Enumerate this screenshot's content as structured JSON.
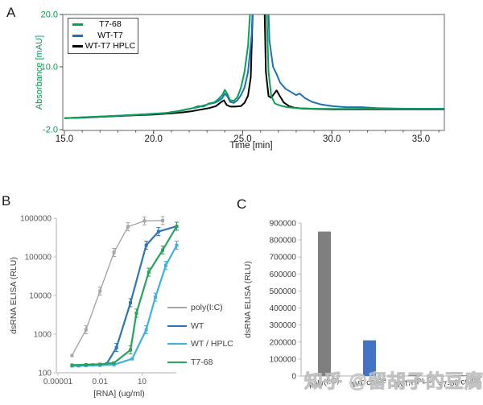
{
  "watermark": {
    "text": "知乎 @留胡子的豆腐",
    "color": "#c7c7c7"
  },
  "chart_data": [
    {
      "panel_label": "A",
      "type": "line",
      "description": "HPLC chromatogram",
      "xlabel": "Time [min]",
      "ylabel": "Absorbance [mAU]",
      "xlim": [
        15,
        36.3
      ],
      "ylim": [
        -2,
        20
      ],
      "x_ticks": {
        "labels": [
          "15.0",
          "20.0",
          "25.0",
          "30.0",
          "35.0"
        ],
        "values": [
          15,
          20,
          25,
          30,
          35
        ]
      },
      "y_ticks": {
        "labels": [
          "20.0",
          "10.0",
          "-2.0"
        ],
        "values": [
          20,
          10,
          -2
        ]
      },
      "axis_color": "#7f7f7f",
      "ylabel_color": "#00a050",
      "grid": false,
      "legend_position": "top-left-boxed",
      "series": [
        {
          "name": "WT-T7 HPLC",
          "color": "#000000",
          "points": [
            [
              15,
              0.2
            ],
            [
              16,
              0.3
            ],
            [
              17,
              0.45
            ],
            [
              18,
              0.6
            ],
            [
              19,
              0.75
            ],
            [
              20,
              0.9
            ],
            [
              21,
              1.1
            ],
            [
              21.6,
              1.3
            ],
            [
              22.1,
              1.5
            ],
            [
              22.6,
              1.8
            ],
            [
              23.1,
              2.1
            ],
            [
              23.5,
              2.5
            ],
            [
              23.8,
              3.3
            ],
            [
              23.95,
              3.6
            ],
            [
              24.1,
              2.7
            ],
            [
              24.3,
              2.4
            ],
            [
              24.6,
              2.4
            ],
            [
              24.9,
              2.5
            ],
            [
              25.1,
              3.1
            ],
            [
              25.3,
              4.5
            ],
            [
              25.45,
              8
            ],
            [
              25.6,
              25
            ],
            [
              26.2,
              25
            ],
            [
              26.3,
              9
            ],
            [
              26.45,
              4.4
            ],
            [
              26.6,
              4.1
            ],
            [
              26.9,
              5.5
            ],
            [
              27.05,
              4.6
            ],
            [
              27.3,
              3.2
            ],
            [
              27.6,
              2.5
            ],
            [
              27.9,
              2.2
            ],
            [
              28.3,
              2.05
            ],
            [
              29,
              1.95
            ],
            [
              30,
              1.9
            ],
            [
              32,
              1.9
            ],
            [
              34,
              1.9
            ],
            [
              36.3,
              1.9
            ]
          ]
        },
        {
          "name": "WT-T7",
          "color": "#1f70b8",
          "points": [
            [
              15,
              0.2
            ],
            [
              16,
              0.35
            ],
            [
              17,
              0.5
            ],
            [
              18,
              0.65
            ],
            [
              19,
              0.85
            ],
            [
              20,
              1.05
            ],
            [
              20.7,
              1.2
            ],
            [
              21.3,
              1.5
            ],
            [
              21.8,
              1.85
            ],
            [
              22.2,
              2.1
            ],
            [
              22.5,
              2.3
            ],
            [
              22.8,
              2.6
            ],
            [
              23.1,
              2.9
            ],
            [
              23.4,
              3.1
            ],
            [
              23.6,
              3.4
            ],
            [
              23.85,
              4.0
            ],
            [
              24.0,
              4.9
            ],
            [
              24.15,
              4.3
            ],
            [
              24.3,
              3.3
            ],
            [
              24.5,
              3.1
            ],
            [
              24.7,
              3.6
            ],
            [
              24.9,
              4.6
            ],
            [
              25.1,
              6
            ],
            [
              25.3,
              9
            ],
            [
              25.5,
              16
            ],
            [
              25.6,
              25
            ],
            [
              26.4,
              25
            ],
            [
              26.5,
              15
            ],
            [
              26.7,
              10
            ],
            [
              26.9,
              8.6
            ],
            [
              27.1,
              7
            ],
            [
              27.4,
              5.8
            ],
            [
              27.7,
              5.2
            ],
            [
              28.0,
              4.6
            ],
            [
              28.2,
              4.9
            ],
            [
              28.5,
              4.0
            ],
            [
              28.9,
              3.3
            ],
            [
              29.4,
              2.8
            ],
            [
              30,
              2.5
            ],
            [
              30.8,
              2.3
            ],
            [
              31.7,
              2.3
            ],
            [
              32.5,
              2.1
            ],
            [
              33.5,
              2.05
            ],
            [
              34.5,
              2.0
            ],
            [
              36.3,
              2.0
            ]
          ]
        },
        {
          "name": "T7-68",
          "color": "#0aa153",
          "points": [
            [
              15,
              0.2
            ],
            [
              16,
              0.35
            ],
            [
              17,
              0.5
            ],
            [
              18,
              0.65
            ],
            [
              19,
              0.8
            ],
            [
              20,
              1.0
            ],
            [
              20.7,
              1.15
            ],
            [
              21.3,
              1.45
            ],
            [
              21.8,
              1.8
            ],
            [
              22.2,
              2.1
            ],
            [
              22.5,
              2.5
            ],
            [
              22.8,
              2.4
            ],
            [
              23.1,
              3.0
            ],
            [
              23.4,
              3.2
            ],
            [
              23.6,
              3.7
            ],
            [
              23.85,
              4.6
            ],
            [
              24.0,
              5.6
            ],
            [
              24.15,
              4.7
            ],
            [
              24.3,
              3.6
            ],
            [
              24.5,
              3.5
            ],
            [
              24.7,
              4.2
            ],
            [
              24.9,
              6
            ],
            [
              25.1,
              9
            ],
            [
              25.3,
              14
            ],
            [
              25.5,
              25
            ],
            [
              26.3,
              25
            ],
            [
              26.45,
              9
            ],
            [
              26.6,
              4.5
            ],
            [
              26.8,
              3.0
            ],
            [
              27.1,
              2.6
            ],
            [
              27.5,
              2.3
            ],
            [
              28,
              2.1
            ],
            [
              29,
              2.0
            ],
            [
              30,
              1.95
            ],
            [
              31,
              1.95
            ],
            [
              32,
              2.0
            ],
            [
              33,
              1.95
            ],
            [
              34,
              1.95
            ],
            [
              36.3,
              1.95
            ]
          ]
        }
      ],
      "legend_order": [
        "T7-68",
        "WT-T7",
        "WT-T7 HPLC"
      ]
    },
    {
      "panel_label": "B",
      "type": "line",
      "description": "dsRNA ELISA dose-response, log-log",
      "xlabel": "[RNA] (ug/ml)",
      "ylabel": "dsRNA ELISA (RLU)",
      "xscale": "log",
      "yscale": "log",
      "xlim": [
        1e-05,
        3000
      ],
      "ylim": [
        100,
        1000000
      ],
      "x_ticks": {
        "labels": [
          "0.00001",
          "0.01",
          "10"
        ],
        "values": [
          1e-05,
          0.01,
          10
        ]
      },
      "y_ticks": {
        "labels": [
          "100",
          "1000",
          "10000",
          "100000",
          "1000000"
        ],
        "values": [
          100,
          1000,
          10000,
          100000,
          1000000
        ]
      },
      "axis_color": "#bfbfbf",
      "grid": false,
      "has_error_bars": true,
      "legend_position": "right",
      "series": [
        {
          "name": "poly(I:C)",
          "color": "#a6a6a6",
          "width": 1.4,
          "x": [
            0.0001,
            0.001,
            0.01,
            0.1,
            1,
            15,
            300
          ],
          "y": [
            280,
            1300,
            13000,
            130000,
            600000,
            850000,
            870000
          ]
        },
        {
          "name": "WT",
          "color": "#2e75b6",
          "width": 2.2,
          "x": [
            0.0003,
            0.003,
            0.03,
            0.15,
            1.5,
            20,
            150,
            3000
          ],
          "y": [
            152,
            160,
            170,
            450,
            6500,
            200000,
            450000,
            620000
          ]
        },
        {
          "name": "WT / HPLC",
          "color": "#41b0e1",
          "width": 2.2,
          "x": [
            0.0001,
            0.001,
            0.01,
            0.1,
            2,
            20,
            90,
            500,
            3000
          ],
          "y": [
            150,
            153,
            156,
            162,
            230,
            1300,
            9000,
            60000,
            200000
          ]
        },
        {
          "name": "T7-68",
          "color": "#27a35e",
          "width": 2.2,
          "x": [
            0.0001,
            0.001,
            0.01,
            0.1,
            1.5,
            4,
            30,
            300,
            3000
          ],
          "y": [
            158,
            162,
            166,
            180,
            390,
            3500,
            40000,
            150000,
            620000
          ]
        }
      ]
    },
    {
      "panel_label": "C",
      "type": "bar",
      "description": "dsRNA ELISA of crude vs purified preps",
      "xlabel": "",
      "ylabel": "dsRNA ELISA (RLU)",
      "categories": [
        "poly(I:C)",
        "WT crude",
        "WT/HPLC",
        "T7-68 crude"
      ],
      "values": [
        850000,
        210000,
        4000,
        4000
      ],
      "bar_colors": [
        "#7f7f7f",
        "#4472c4",
        "#7f7f7f",
        "#7f7f7f"
      ],
      "ylim": [
        0,
        900000
      ],
      "y_ticks": {
        "labels": [
          "0",
          "100000",
          "200000",
          "300000",
          "400000",
          "500000",
          "600000",
          "700000",
          "800000",
          "900000"
        ],
        "values": [
          0,
          100000,
          200000,
          300000,
          400000,
          500000,
          600000,
          700000,
          800000,
          900000
        ]
      },
      "axis_color": "#bfbfbf",
      "grid": false
    }
  ]
}
